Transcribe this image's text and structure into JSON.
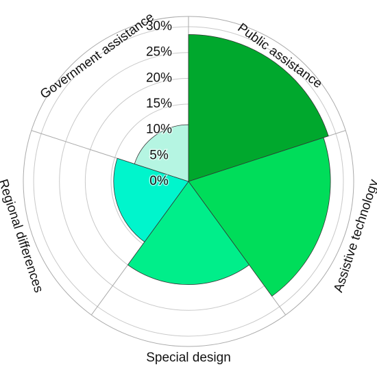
{
  "chart_data": {
    "type": "polar-area",
    "categories": [
      "Public assistance",
      "Assistive technology",
      "Special design",
      "Regional differences",
      "Government assistance"
    ],
    "values": [
      28.5,
      27.5,
      20,
      14.5,
      11
    ],
    "colors": [
      "#00a82d",
      "#00dd5a",
      "#00ee8a",
      "#00f5cc",
      "#b5f5e2"
    ],
    "rlim": [
      0,
      32
    ],
    "rticks": [
      {
        "value": 0,
        "label": "0%"
      },
      {
        "value": 5,
        "label": "5%"
      },
      {
        "value": 10,
        "label": "10%"
      },
      {
        "value": 15,
        "label": "15%"
      },
      {
        "value": 20,
        "label": "20%"
      },
      {
        "value": 25,
        "label": "25%"
      },
      {
        "value": 30,
        "label": "30%"
      }
    ],
    "grid": true
  }
}
